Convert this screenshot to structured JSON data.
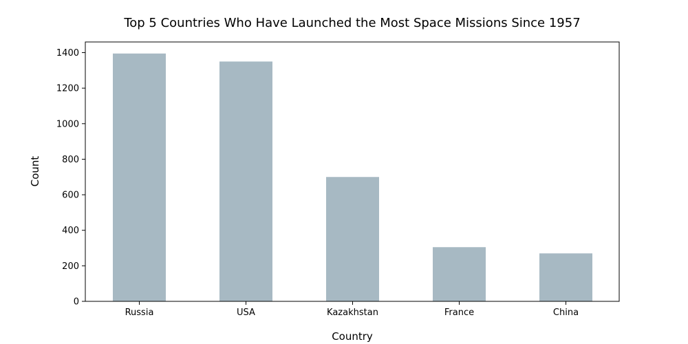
{
  "chart_data": {
    "type": "bar",
    "title": "Top 5 Countries Who Have Launched the Most Space Missions Since 1957",
    "xlabel": "Country",
    "ylabel": "Count",
    "categories": [
      "Russia",
      "USA",
      "Kazakhstan",
      "France",
      "China"
    ],
    "values": [
      1395,
      1350,
      700,
      305,
      270
    ],
    "ylim": [
      0,
      1460
    ],
    "yticks": [
      0,
      200,
      400,
      600,
      800,
      1000,
      1200,
      1400
    ],
    "grid": false,
    "legend": "none",
    "bar_color": "#a7b9c3"
  }
}
